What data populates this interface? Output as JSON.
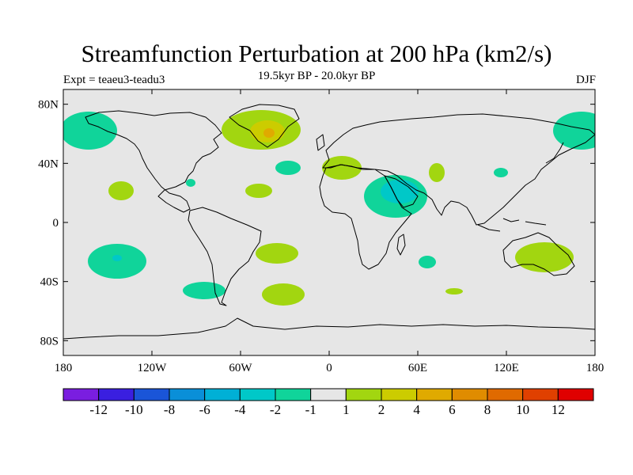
{
  "title": "Streamfunction Perturbation at 200 hPa (km2/s)",
  "subtitle": "19.5kyr BP - 20.0kyr BP",
  "left_label": "Expt = teaeu3-teadu3",
  "right_label": "DJF",
  "axes": {
    "x_ticks": [
      "180",
      "120W",
      "60W",
      "0",
      "60E",
      "120E",
      "180"
    ],
    "y_ticks": [
      "80N",
      "40N",
      "0",
      "40S",
      "80S"
    ]
  },
  "colorbar": {
    "labels": [
      "-12",
      "-10",
      "-8",
      "-6",
      "-4",
      "-2",
      "-1",
      "1",
      "2",
      "4",
      "6",
      "8",
      "10",
      "12"
    ],
    "colors": [
      "#7a1ee0",
      "#3a1fe0",
      "#1a55d8",
      "#0a8fd8",
      "#00b0d6",
      "#00c8c8",
      "#10d49a",
      "#e6e6e6",
      "#a2d610",
      "#cccc00",
      "#e0aa00",
      "#e08c00",
      "#e06a00",
      "#e04000",
      "#e00000"
    ]
  },
  "colors": {
    "ocean_background": "#e6e6e6",
    "coastline": "#000000"
  }
}
